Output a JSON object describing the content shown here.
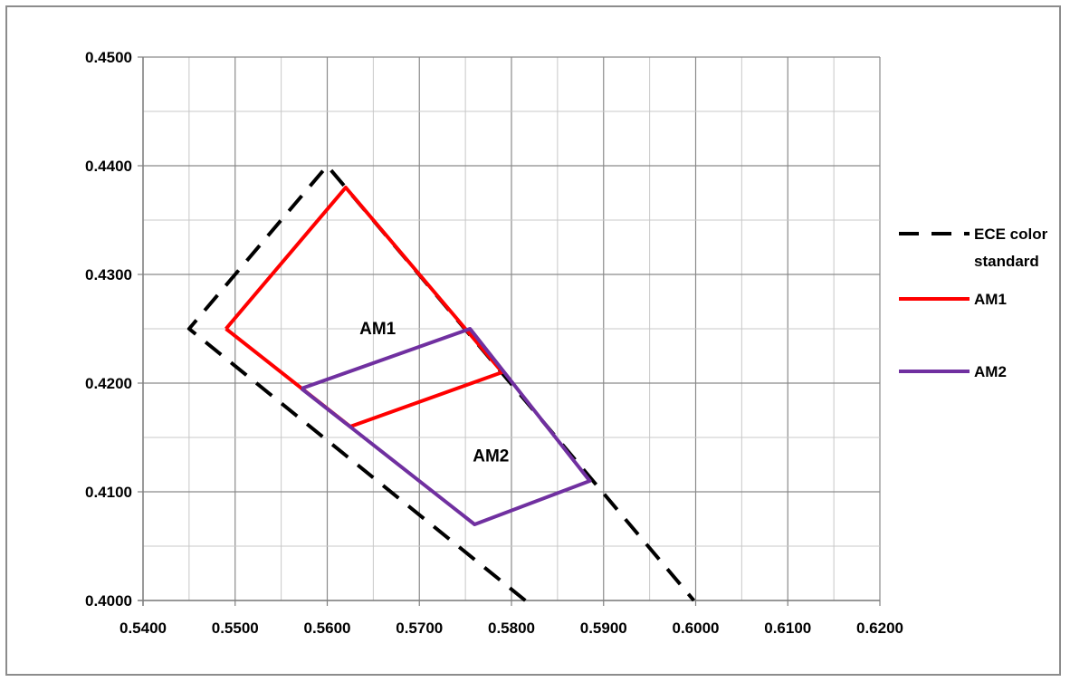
{
  "chart_data": {
    "type": "line",
    "title": "",
    "xlabel": "",
    "ylabel": "",
    "xlim": [
      0.54,
      0.62
    ],
    "ylim": [
      0.4,
      0.45
    ],
    "x_ticks": [
      "0.5400",
      "0.5500",
      "0.5600",
      "0.5700",
      "0.5800",
      "0.5900",
      "0.6000",
      "0.6100",
      "0.6200"
    ],
    "y_ticks": [
      "0.4000",
      "0.4100",
      "0.4200",
      "0.4300",
      "0.4400",
      "0.4500"
    ],
    "grid": true,
    "legend_position": "right",
    "series": [
      {
        "name": "ECE color standard",
        "color": "#000000",
        "dash": true,
        "points": [
          [
            0.5815,
            0.4
          ],
          [
            0.545,
            0.425
          ],
          [
            0.56,
            0.44
          ],
          [
            0.5998,
            0.4
          ]
        ]
      },
      {
        "name": "AM1",
        "color": "#ff0000",
        "dash": false,
        "points": [
          [
            0.549,
            0.425
          ],
          [
            0.562,
            0.438
          ],
          [
            0.579,
            0.421
          ],
          [
            0.5625,
            0.416
          ],
          [
            0.549,
            0.425
          ]
        ]
      },
      {
        "name": "AM2",
        "color": "#7030a0",
        "dash": false,
        "points": [
          [
            0.5572,
            0.4195
          ],
          [
            0.5755,
            0.425
          ],
          [
            0.5885,
            0.411
          ],
          [
            0.576,
            0.407
          ],
          [
            0.5572,
            0.4195
          ]
        ]
      }
    ],
    "annotations": [
      {
        "text": "AM1",
        "x": 0.5635,
        "y": 0.4245
      },
      {
        "text": "AM2",
        "x": 0.5758,
        "y": 0.4128
      }
    ]
  }
}
